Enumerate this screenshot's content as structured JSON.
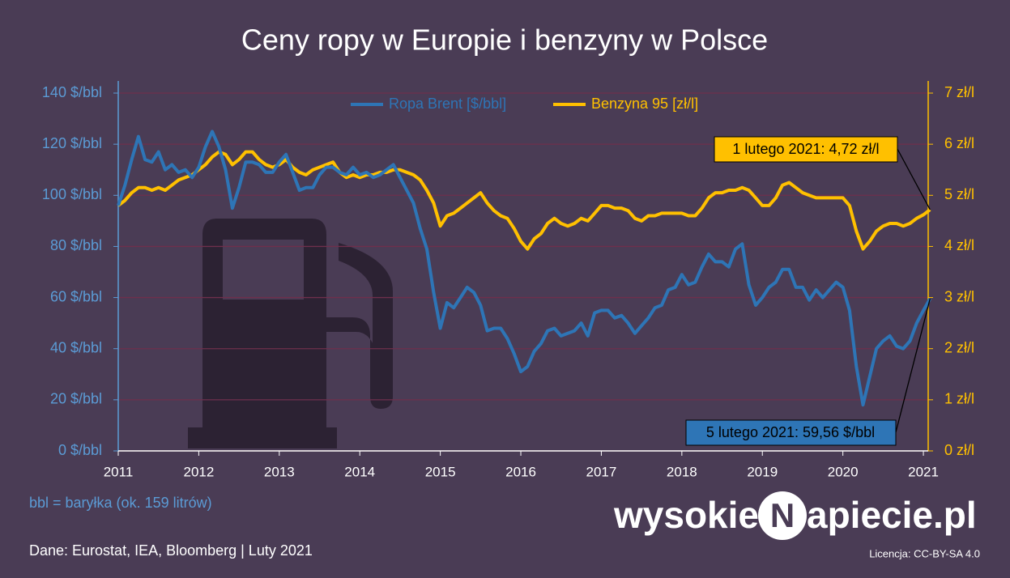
{
  "chart_data": {
    "type": "line",
    "title": "Ceny ropy w Europie i benzyny w Polsce",
    "x": [
      2011,
      2011.083,
      2011.167,
      2011.25,
      2011.333,
      2011.417,
      2011.5,
      2011.583,
      2011.667,
      2011.75,
      2011.833,
      2011.917,
      2012,
      2012.083,
      2012.167,
      2012.25,
      2012.333,
      2012.417,
      2012.5,
      2012.583,
      2012.667,
      2012.75,
      2012.833,
      2012.917,
      2013,
      2013.083,
      2013.167,
      2013.25,
      2013.333,
      2013.417,
      2013.5,
      2013.583,
      2013.667,
      2013.75,
      2013.833,
      2013.917,
      2014,
      2014.083,
      2014.167,
      2014.25,
      2014.333,
      2014.417,
      2014.5,
      2014.583,
      2014.667,
      2014.75,
      2014.833,
      2014.917,
      2015,
      2015.083,
      2015.167,
      2015.25,
      2015.333,
      2015.417,
      2015.5,
      2015.583,
      2015.667,
      2015.75,
      2015.833,
      2015.917,
      2016,
      2016.083,
      2016.167,
      2016.25,
      2016.333,
      2016.417,
      2016.5,
      2016.583,
      2016.667,
      2016.75,
      2016.833,
      2016.917,
      2017,
      2017.083,
      2017.167,
      2017.25,
      2017.333,
      2017.417,
      2017.5,
      2017.583,
      2017.667,
      2017.75,
      2017.833,
      2017.917,
      2018,
      2018.083,
      2018.167,
      2018.25,
      2018.333,
      2018.417,
      2018.5,
      2018.583,
      2018.667,
      2018.75,
      2018.833,
      2018.917,
      2019,
      2019.083,
      2019.167,
      2019.25,
      2019.333,
      2019.417,
      2019.5,
      2019.583,
      2019.667,
      2019.75,
      2019.833,
      2019.917,
      2020,
      2020.083,
      2020.167,
      2020.25,
      2020.333,
      2020.417,
      2020.5,
      2020.583,
      2020.667,
      2020.75,
      2020.833,
      2020.917,
      2021,
      2021.083
    ],
    "series": [
      {
        "name": "Ropa Brent [$/bbl]",
        "color": "#2e75b6",
        "axis": "y",
        "values": [
          96,
          104,
          114,
          123,
          114,
          113,
          117,
          110,
          112,
          109,
          110,
          107,
          111,
          119,
          125,
          119,
          110,
          95,
          103,
          113,
          113,
          112,
          109,
          109,
          113,
          116,
          109,
          102,
          103,
          103,
          108,
          111,
          111,
          109,
          108,
          111,
          108,
          109,
          107,
          108,
          110,
          112,
          107,
          102,
          97,
          87,
          79,
          62,
          48,
          58,
          56,
          60,
          64,
          62,
          57,
          47,
          48,
          48,
          44,
          38,
          31,
          33,
          39,
          42,
          47,
          48,
          45,
          46,
          47,
          50,
          45,
          54,
          55,
          55,
          52,
          53,
          50,
          46,
          49,
          52,
          56,
          57,
          63,
          64,
          69,
          65,
          66,
          72,
          77,
          74,
          74,
          72,
          79,
          81,
          65,
          57,
          60,
          64,
          66,
          71,
          71,
          64,
          64,
          59,
          63,
          60,
          63,
          66,
          64,
          55,
          33,
          18,
          29,
          40,
          43,
          45,
          41,
          40,
          43,
          50,
          55,
          59.56
        ]
      },
      {
        "name": "Benzyna 95 [zł/l]",
        "color": "#ffc000",
        "axis": "y2",
        "values": [
          4.8,
          4.9,
          5.05,
          5.15,
          5.15,
          5.1,
          5.15,
          5.1,
          5.2,
          5.3,
          5.35,
          5.4,
          5.5,
          5.6,
          5.75,
          5.85,
          5.8,
          5.6,
          5.7,
          5.85,
          5.85,
          5.7,
          5.6,
          5.55,
          5.6,
          5.7,
          5.55,
          5.45,
          5.4,
          5.5,
          5.55,
          5.6,
          5.65,
          5.45,
          5.35,
          5.4,
          5.35,
          5.4,
          5.4,
          5.45,
          5.45,
          5.5,
          5.5,
          5.45,
          5.4,
          5.3,
          5.1,
          4.85,
          4.4,
          4.6,
          4.65,
          4.75,
          4.85,
          4.95,
          5.05,
          4.85,
          4.7,
          4.6,
          4.55,
          4.35,
          4.1,
          3.95,
          4.15,
          4.25,
          4.45,
          4.55,
          4.45,
          4.4,
          4.45,
          4.55,
          4.5,
          4.65,
          4.8,
          4.8,
          4.75,
          4.75,
          4.7,
          4.55,
          4.5,
          4.6,
          4.6,
          4.65,
          4.65,
          4.65,
          4.65,
          4.6,
          4.6,
          4.75,
          4.95,
          5.05,
          5.05,
          5.1,
          5.1,
          5.15,
          5.1,
          4.95,
          4.8,
          4.8,
          4.95,
          5.2,
          5.25,
          5.15,
          5.05,
          5.0,
          4.95,
          4.95,
          4.95,
          4.95,
          4.95,
          4.8,
          4.3,
          3.95,
          4.1,
          4.3,
          4.4,
          4.45,
          4.45,
          4.4,
          4.45,
          4.55,
          4.62,
          4.72
        ]
      }
    ],
    "xlim": [
      2011,
      2021.1
    ],
    "xticks": [
      2011,
      2012,
      2013,
      2014,
      2015,
      2016,
      2017,
      2018,
      2019,
      2020,
      2021
    ],
    "ylim": [
      0,
      140
    ],
    "yticks": [
      {
        "value": 0,
        "label": "0 $/bbl"
      },
      {
        "value": 20,
        "label": "20 $/bbl"
      },
      {
        "value": 40,
        "label": "40 $/bbl"
      },
      {
        "value": 60,
        "label": "60 $/bbl"
      },
      {
        "value": 80,
        "label": "80 $/bbl"
      },
      {
        "value": 100,
        "label": "100 $/bbl"
      },
      {
        "value": 120,
        "label": "120 $/bbl"
      },
      {
        "value": 140,
        "label": "140 $/bbl"
      }
    ],
    "y2lim": [
      0,
      7
    ],
    "y2ticks": [
      {
        "value": 0,
        "label": "0 zł/l"
      },
      {
        "value": 1,
        "label": "1 zł/l"
      },
      {
        "value": 2,
        "label": "2 zł/l"
      },
      {
        "value": 3,
        "label": "3 zł/l"
      },
      {
        "value": 4,
        "label": "4 zł/l"
      },
      {
        "value": 5,
        "label": "5 zł/l"
      },
      {
        "value": 6,
        "label": "6 zł/l"
      },
      {
        "value": 7,
        "label": "7 zł/l"
      }
    ],
    "grid": true,
    "legend": "top",
    "annotations": [
      "1 lutego 2021: 4,72 zł/l",
      "5 lutego 2021: 59,56 $/bbl"
    ],
    "note": "bbl = baryłka (ok. 159 litrów)",
    "source": "Dane: Eurostat, IEA, Bloomberg  |  Luty 2021",
    "logo": {
      "left": "wysokie",
      "mark": "N",
      "right": "apiecie.pl"
    },
    "license": "Licencja: CC-BY-SA 4.0"
  }
}
